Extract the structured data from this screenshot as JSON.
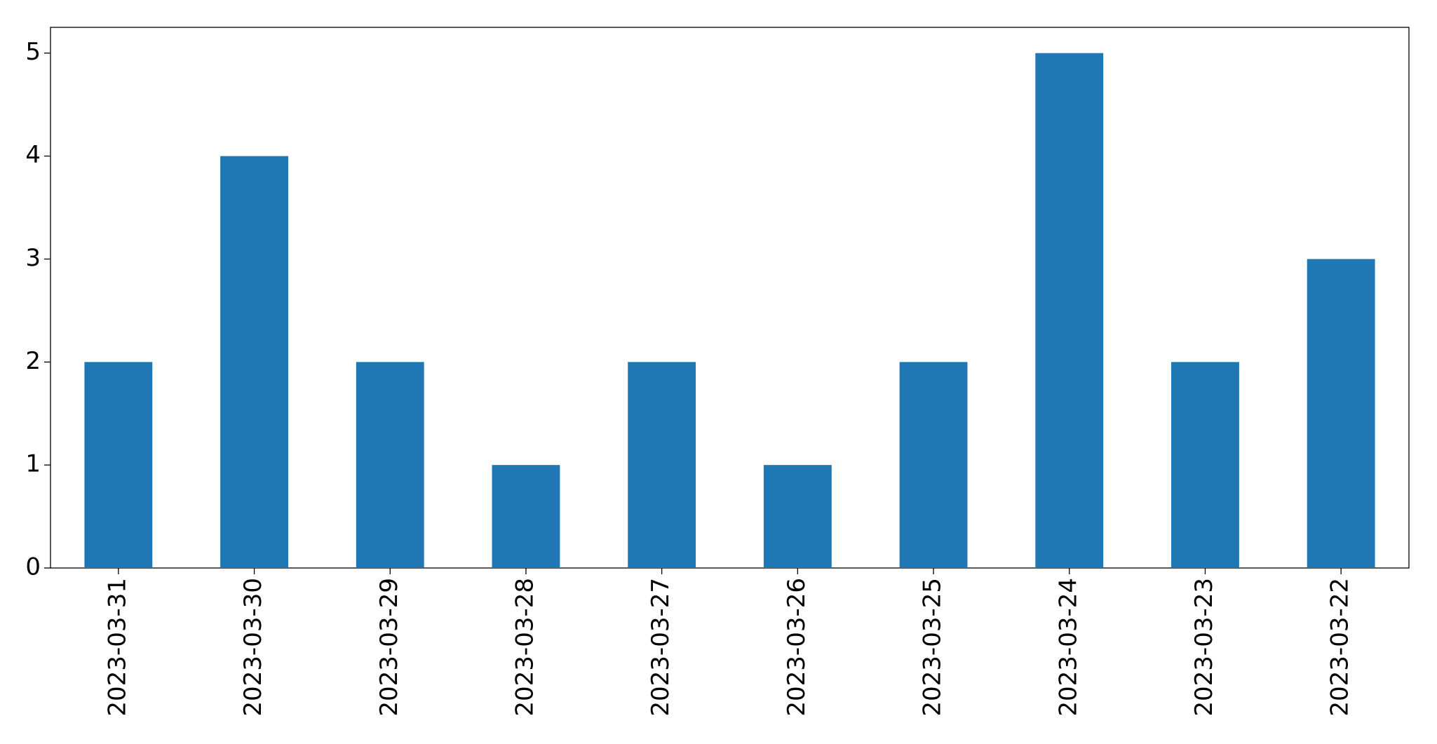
{
  "chart_data": {
    "type": "bar",
    "categories": [
      "2023-03-31",
      "2023-03-30",
      "2023-03-29",
      "2023-03-28",
      "2023-03-27",
      "2023-03-26",
      "2023-03-25",
      "2023-03-24",
      "2023-03-23",
      "2023-03-22"
    ],
    "values": [
      2,
      4,
      2,
      1,
      2,
      1,
      2,
      5,
      2,
      3
    ],
    "color": "#1f77b4",
    "ylim": [
      0,
      5.25
    ],
    "yticks": [
      0,
      1,
      2,
      3,
      4,
      5
    ],
    "grid": false
  }
}
